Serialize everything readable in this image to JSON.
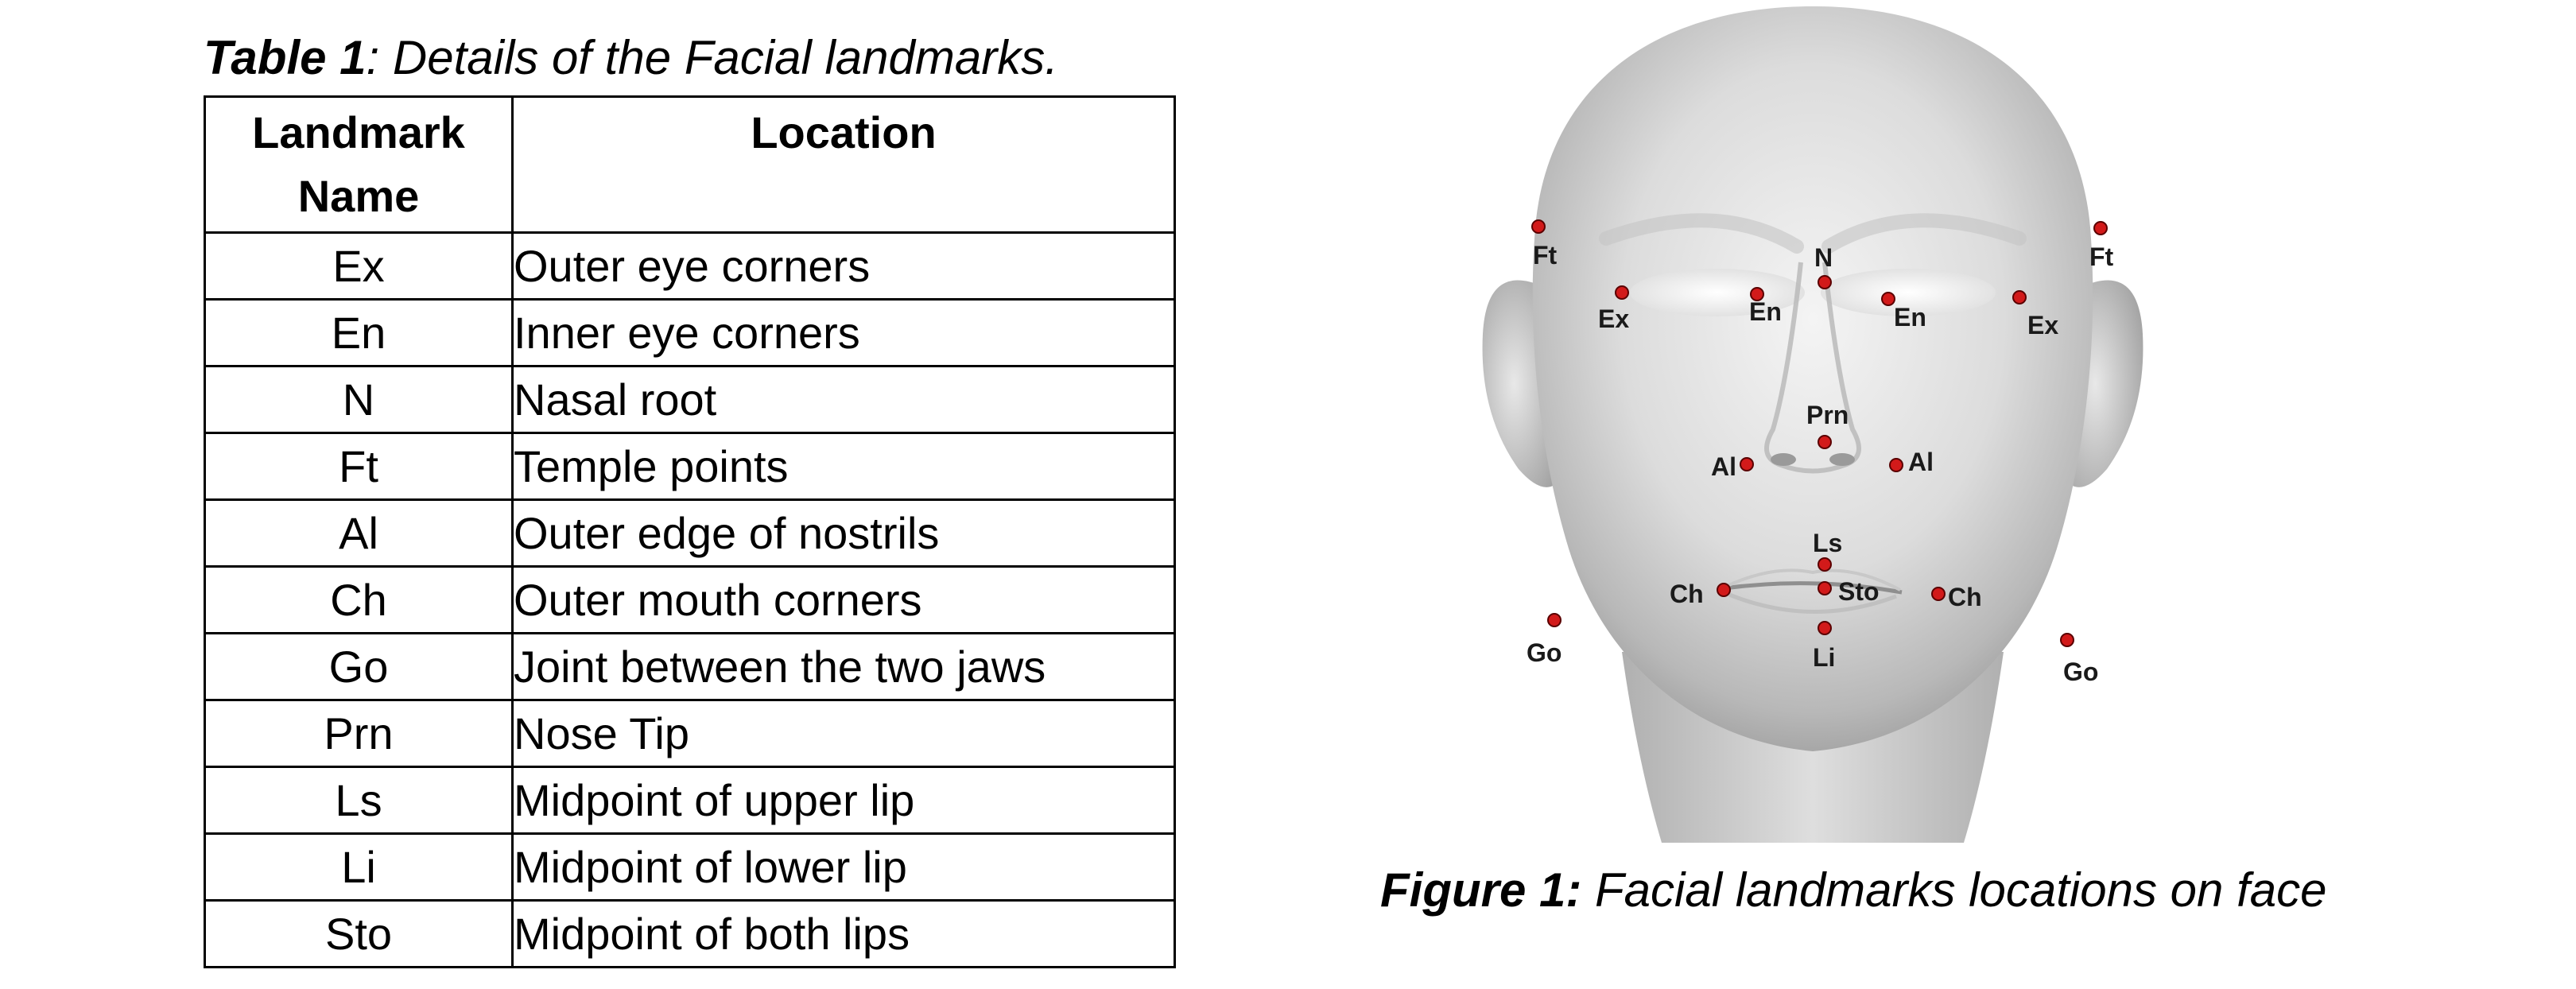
{
  "table": {
    "caption_label": "Table 1",
    "caption_text": ": Details of the Facial landmarks.",
    "headers": [
      "Landmark Name",
      "Location"
    ],
    "rows": [
      {
        "name": "Ex",
        "location": "Outer eye corners"
      },
      {
        "name": "En",
        "location": "Inner eye corners"
      },
      {
        "name": "N",
        "location": "Nasal root"
      },
      {
        "name": "Ft",
        "location": "Temple points"
      },
      {
        "name": "Al",
        "location": "Outer edge of nostrils"
      },
      {
        "name": "Ch",
        "location": "Outer mouth corners"
      },
      {
        "name": "Go",
        "location": "Joint between the two jaws"
      },
      {
        "name": "Prn",
        "location": "Nose Tip"
      },
      {
        "name": "Ls",
        "location": "Midpoint of upper lip"
      },
      {
        "name": "Li",
        "location": "Midpoint of lower lip"
      },
      {
        "name": "Sto",
        "location": "Midpoint of both lips"
      }
    ]
  },
  "figure": {
    "caption_label": "Figure 1:",
    "caption_text": " Facial landmarks locations on face",
    "landmark_labels": {
      "ft_left": "Ft",
      "ft_right": "Ft",
      "n": "N",
      "ex_left": "Ex",
      "en_left": "En",
      "en_right": "En",
      "ex_right": "Ex",
      "prn": "Prn",
      "al_left": "Al",
      "al_right": "Al",
      "ls": "Ls",
      "ch_left": "Ch",
      "sto": "Sto",
      "ch_right": "Ch",
      "go_left": "Go",
      "go_right": "Go",
      "li": "Li"
    },
    "colors": {
      "landmark_dot": "#d21a1a",
      "face_light": "#f2f2f2",
      "face_shadow": "#a8a8a8"
    }
  }
}
